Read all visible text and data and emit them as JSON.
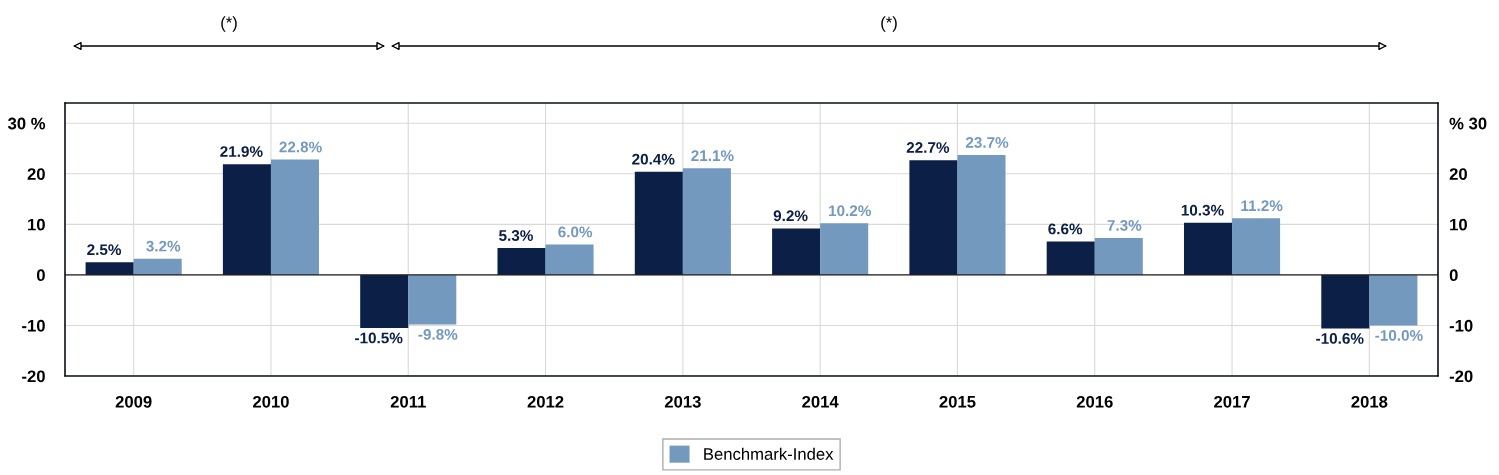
{
  "chart_data": {
    "type": "bar",
    "categories": [
      "2009",
      "2010",
      "2011",
      "2012",
      "2013",
      "2014",
      "2015",
      "2016",
      "2017",
      "2018"
    ],
    "series": [
      {
        "color": "#0b1f47",
        "values": [
          2.5,
          21.9,
          -10.5,
          5.3,
          20.4,
          9.2,
          22.7,
          6.6,
          10.3,
          -10.6
        ],
        "value_labels": [
          "2.5%",
          "21.9%",
          "-10.5%",
          "5.3%",
          "20.4%",
          "9.2%",
          "22.7%",
          "6.6%",
          "10.3%",
          "-10.6%"
        ]
      },
      {
        "name": "Benchmark-Index",
        "color": "#7399bf",
        "values": [
          3.2,
          22.8,
          -9.8,
          6.0,
          21.1,
          10.2,
          23.7,
          7.3,
          11.2,
          -10.0
        ],
        "value_labels": [
          "3.2%",
          "22.8%",
          "-9.8%",
          "6.0%",
          "21.1%",
          "10.2%",
          "23.7%",
          "7.3%",
          "11.2%",
          "-10.0%"
        ]
      }
    ],
    "ylim": [
      -20,
      34
    ],
    "yticks": [
      -20,
      -10,
      0,
      10,
      20,
      {
        "value": 30,
        "label": "30 %"
      }
    ],
    "y2lim": [
      -20,
      34
    ],
    "y2ticks": [
      -20,
      -10,
      0,
      10,
      20,
      {
        "value": 30,
        "label": "% 30"
      }
    ],
    "grid": true,
    "legend": "bottom",
    "annotations": [
      "(*)",
      "(*)"
    ]
  }
}
